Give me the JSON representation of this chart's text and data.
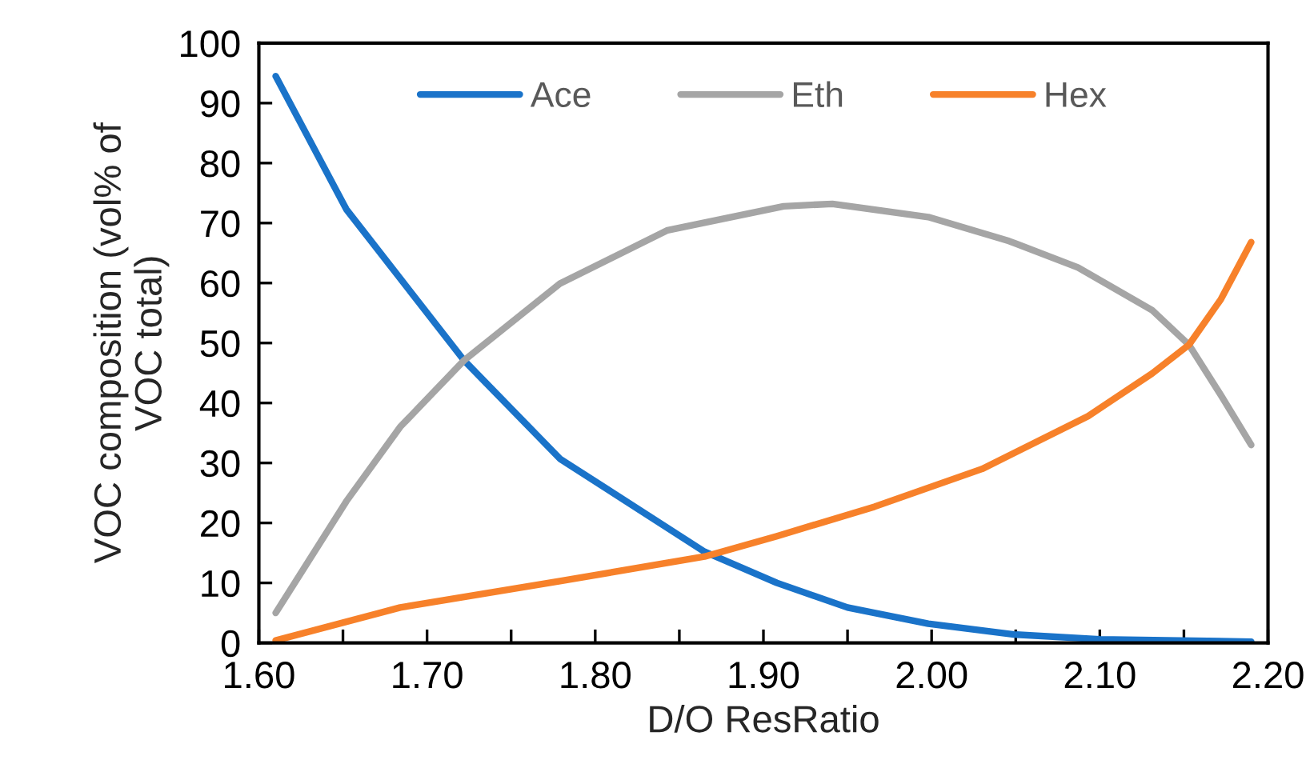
{
  "chart_data": {
    "type": "line",
    "xlabel": "D/O ResRatio",
    "ylabel": "VOC composition (vol% of\nVOC total)",
    "xlim": [
      1.6,
      2.2
    ],
    "ylim": [
      0,
      100
    ],
    "xticks": [
      {
        "value": 1.6,
        "label": "1.60"
      },
      {
        "value": 1.65,
        "label": null
      },
      {
        "value": 1.7,
        "label": "1.70"
      },
      {
        "value": 1.75,
        "label": null
      },
      {
        "value": 1.8,
        "label": "1.80"
      },
      {
        "value": 1.85,
        "label": null
      },
      {
        "value": 1.9,
        "label": "1.90"
      },
      {
        "value": 1.95,
        "label": null
      },
      {
        "value": 2.0,
        "label": "2.00"
      },
      {
        "value": 2.05,
        "label": null
      },
      {
        "value": 2.1,
        "label": "2.10"
      },
      {
        "value": 2.15,
        "label": null
      },
      {
        "value": 2.2,
        "label": "2.20"
      }
    ],
    "yticks": [
      0,
      10,
      20,
      30,
      40,
      50,
      60,
      70,
      80,
      90,
      100
    ],
    "grid": false,
    "legend": "top",
    "marker": "none",
    "line_style": "solid",
    "series": [
      {
        "name": "Ace",
        "color": "#1a73c9",
        "x": [
          1.61,
          1.652,
          1.722,
          1.779,
          1.865,
          1.908,
          1.95,
          1.998,
          2.049,
          2.1,
          2.19
        ],
        "values": [
          94.5,
          72.3,
          47.1,
          30.7,
          15.2,
          10.0,
          5.9,
          3.2,
          1.4,
          0.6,
          0.2
        ]
      },
      {
        "name": "Eth",
        "color": "#a5a5a5",
        "x": [
          1.61,
          1.652,
          1.684,
          1.722,
          1.779,
          1.843,
          1.912,
          1.941,
          1.998,
          2.046,
          2.087,
          2.131,
          2.153,
          2.172,
          2.19
        ],
        "values": [
          5.0,
          23.6,
          36.0,
          47.1,
          59.9,
          68.8,
          72.8,
          73.2,
          71.0,
          67.0,
          62.6,
          55.5,
          49.7,
          41.3,
          33.0
        ]
      },
      {
        "name": "Hex",
        "color": "#f7812a",
        "x": [
          1.61,
          1.684,
          1.779,
          1.865,
          1.908,
          1.966,
          2.03,
          2.093,
          2.131,
          2.153,
          2.172,
          2.19
        ],
        "values": [
          0.4,
          5.9,
          10.3,
          14.4,
          17.8,
          22.7,
          29.0,
          37.8,
          44.9,
          49.7,
          57.3,
          66.8
        ]
      }
    ]
  }
}
